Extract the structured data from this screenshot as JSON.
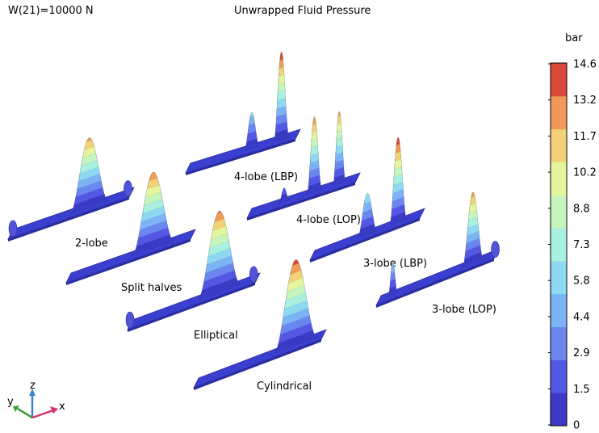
{
  "header": {
    "parameter": "W(21)=10000 N",
    "title": "Unwrapped Fluid Pressure"
  },
  "colorbar": {
    "unit": "bar",
    "ticks": [
      "14.6",
      "13.2",
      "11.7",
      "10.2",
      "8.8",
      "7.3",
      "5.8",
      "4.4",
      "2.9",
      "1.5",
      "0"
    ],
    "colors": [
      "#3a3bc4",
      "#5457e3",
      "#6c86ef",
      "#7bb3f4",
      "#8ed8f2",
      "#a9f0df",
      "#c5f5bd",
      "#e5f59e",
      "#f2d277",
      "#ef9a58",
      "#d94a3a"
    ]
  },
  "bearings": [
    {
      "name": "Cylindrical",
      "label": "Cylindrical",
      "peaks": [
        14.0
      ]
    },
    {
      "name": "Elliptical",
      "label": "Elliptical",
      "peaks": [
        13.5
      ]
    },
    {
      "name": "Split halves",
      "label": "Split halves",
      "peaks": [
        13.2
      ]
    },
    {
      "name": "2-lobe",
      "label": "2-lobe",
      "peaks": [
        12.5
      ]
    },
    {
      "name": "4-lobe (LBP)",
      "label": "4-lobe (LBP)",
      "peaks": [
        14.6,
        6.0
      ]
    },
    {
      "name": "4-lobe (LOP)",
      "label": "4-lobe (LOP)",
      "peaks": [
        13.3,
        12.8
      ]
    },
    {
      "name": "3-lobe (LBP)",
      "label": "3-lobe (LBP)",
      "peaks": [
        14.5,
        7.0
      ]
    },
    {
      "name": "3-lobe (LOP)",
      "label": "3-lobe (LOP)",
      "peaks": [
        12.8,
        6.0
      ]
    }
  ],
  "axes": {
    "x": "x",
    "y": "y",
    "z": "z"
  }
}
